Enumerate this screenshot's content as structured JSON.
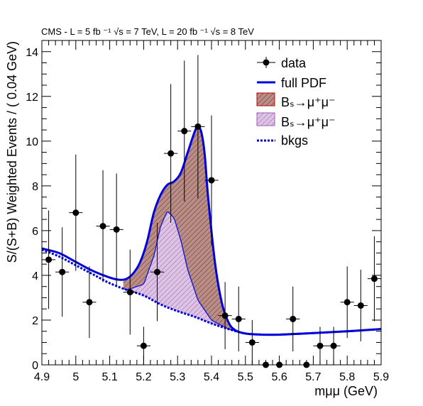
{
  "chart_data": {
    "type": "scatter",
    "title": "CMS - L = 5 fb  ⁻¹ √s = 7 TeV, L = 20 fb  ⁻¹ √s = 8 TeV",
    "xlabel": "mμμ (GeV)",
    "ylabel": "S/(S+B) Weighted Events / ( 0.04 GeV)",
    "xlim": [
      4.9,
      5.9
    ],
    "ylim": [
      0,
      14.5
    ],
    "x_ticks": [
      "4.9",
      "5",
      "5.1",
      "5.2",
      "5.3",
      "5.4",
      "5.5",
      "5.6",
      "5.7",
      "5.8",
      "5.9"
    ],
    "y_ticks": [
      "0",
      "2",
      "4",
      "6",
      "8",
      "10",
      "12",
      "14"
    ],
    "legend": {
      "position": "top-right",
      "entries": [
        "data",
        "full PDF",
        "Bₛ→μ⁺μ⁻",
        "Bₛ→μ⁺μ⁻",
        "bkgs"
      ]
    },
    "series": [
      {
        "name": "data",
        "x": [
          4.92,
          4.96,
          5.0,
          5.04,
          5.08,
          5.12,
          5.16,
          5.2,
          5.24,
          5.28,
          5.32,
          5.36,
          5.4,
          5.44,
          5.48,
          5.52,
          5.56,
          5.6,
          5.64,
          5.68,
          5.72,
          5.76,
          5.8,
          5.84,
          5.88
        ],
        "y": [
          4.7,
          4.15,
          6.8,
          2.8,
          6.2,
          6.05,
          3.25,
          0.85,
          4.15,
          9.45,
          10.45,
          10.65,
          8.25,
          2.2,
          2.05,
          1.0,
          0.0,
          0.0,
          2.05,
          0.0,
          0.85,
          0.85,
          2.8,
          2.65,
          3.85
        ],
        "y_err": [
          2.2,
          2.0,
          2.6,
          1.6,
          2.5,
          2.5,
          1.9,
          0.85,
          2.2,
          3.1,
          3.15,
          3.2,
          2.9,
          1.5,
          1.45,
          1.0,
          0.0,
          0.0,
          1.45,
          0.0,
          0.85,
          0.85,
          1.6,
          1.6,
          1.9
        ]
      },
      {
        "name": "full PDF",
        "x": [
          4.9,
          4.95,
          5.0,
          5.05,
          5.1,
          5.13,
          5.15,
          5.17,
          5.19,
          5.21,
          5.23,
          5.25,
          5.27,
          5.29,
          5.31,
          5.33,
          5.35,
          5.36,
          5.37,
          5.38,
          5.39,
          5.41,
          5.43,
          5.45,
          5.47,
          5.5,
          5.55,
          5.6,
          5.7,
          5.8,
          5.9
        ],
        "y": [
          5.2,
          5.0,
          4.6,
          4.2,
          3.9,
          3.8,
          3.85,
          4.1,
          4.6,
          5.5,
          6.8,
          7.6,
          8.05,
          8.2,
          8.6,
          9.5,
          10.4,
          10.65,
          10.4,
          9.4,
          7.5,
          4.6,
          2.8,
          1.9,
          1.55,
          1.4,
          1.35,
          1.35,
          1.42,
          1.5,
          1.6
        ]
      },
      {
        "name": "Bₛ→μ⁺μ⁻",
        "x": [
          5.15,
          5.2,
          5.25,
          5.3,
          5.33,
          5.35,
          5.36,
          5.37,
          5.38,
          5.39,
          5.41,
          5.43,
          5.45,
          5.47,
          5.5
        ],
        "y": [
          0.0,
          0.1,
          0.5,
          2.0,
          3.4,
          4.7,
          5.4,
          5.5,
          5.1,
          4.2,
          2.2,
          0.9,
          0.4,
          0.2,
          0.0
        ]
      },
      {
        "name": "Bₛ→μ⁺μ⁻",
        "x": [
          5.15,
          5.2,
          5.23,
          5.25,
          5.27,
          5.29,
          5.31,
          5.33,
          5.36,
          5.4,
          5.45
        ],
        "y": [
          0.0,
          0.5,
          2.0,
          3.5,
          4.3,
          4.1,
          3.2,
          2.0,
          0.8,
          0.15,
          0.0
        ]
      },
      {
        "name": "bkgs",
        "x": [
          4.9,
          4.95,
          5.0,
          5.05,
          5.1,
          5.15,
          5.2,
          5.25,
          5.3,
          5.35,
          5.4,
          5.45,
          5.5,
          5.55,
          5.6,
          5.7,
          5.8,
          5.9
        ],
        "y": [
          5.15,
          4.85,
          4.45,
          4.05,
          3.65,
          3.35,
          3.1,
          2.7,
          2.4,
          2.15,
          1.85,
          1.6,
          1.4,
          1.35,
          1.35,
          1.42,
          1.5,
          1.6
        ]
      }
    ],
    "colors": {
      "data": "#000000",
      "full_pdf": "#0000dd",
      "bs_fill": "#b88e86",
      "bs_hatch": "#6b2a2a",
      "bs_edge": "#8b0000",
      "bd_fill": "#dcc4e2",
      "bd_hatch": "#a35aba",
      "bkgs": "#0000dd"
    }
  }
}
